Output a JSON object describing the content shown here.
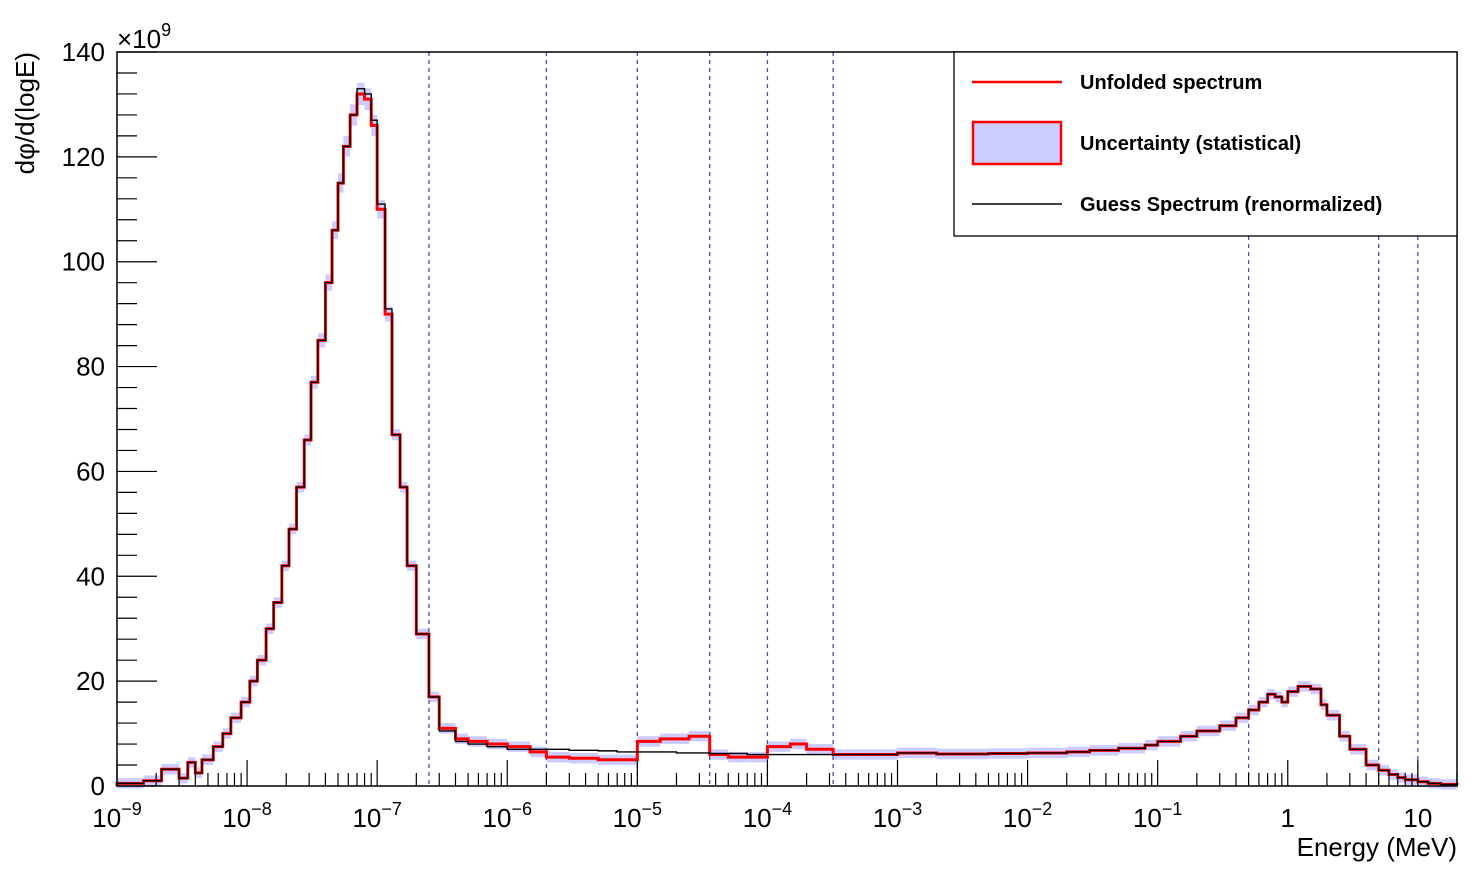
{
  "chart_data": {
    "type": "line",
    "title": "",
    "xlabel": "Energy (MeV)",
    "ylabel": "dφ/d(logE)",
    "y_multiplier_label": "×10",
    "y_multiplier_exponent": "9",
    "xscale": "log",
    "xlim": [
      1e-09,
      20
    ],
    "ylim": [
      0,
      140
    ],
    "grid": false,
    "legend_position": "top-right",
    "colors": {
      "unfolded": "#ff0000",
      "uncertainty_fill": "#ccccff",
      "guess": "#000000",
      "reference_lines": "#4b4bb4"
    },
    "x_ticks": [
      {
        "value": 1e-09,
        "base": "10",
        "exp": "−9"
      },
      {
        "value": 1e-08,
        "base": "10",
        "exp": "−8"
      },
      {
        "value": 1e-07,
        "base": "10",
        "exp": "−7"
      },
      {
        "value": 1e-06,
        "base": "10",
        "exp": "−6"
      },
      {
        "value": 1e-05,
        "base": "10",
        "exp": "−5"
      },
      {
        "value": 0.0001,
        "base": "10",
        "exp": "−4"
      },
      {
        "value": 0.001,
        "base": "10",
        "exp": "−3"
      },
      {
        "value": 0.01,
        "base": "10",
        "exp": "−2"
      },
      {
        "value": 0.1,
        "base": "10",
        "exp": "−1"
      },
      {
        "value": 1,
        "base": "1",
        "exp": ""
      },
      {
        "value": 10,
        "base": "10",
        "exp": ""
      }
    ],
    "y_ticks": [
      0,
      20,
      40,
      60,
      80,
      100,
      120,
      140
    ],
    "reference_lines_x": [
      2.5e-07,
      2e-06,
      1e-05,
      3.6e-05,
      0.0001,
      0.00032,
      0.5,
      5,
      10
    ],
    "legend": [
      {
        "label": "Unfolded spectrum",
        "style": "line-red"
      },
      {
        "label": "Uncertainty (statistical)",
        "style": "box-band"
      },
      {
        "label": "Guess Spectrum (renormalized)",
        "style": "line-black"
      }
    ],
    "series": [
      {
        "name": "Unfolded spectrum",
        "x": [
          1e-09,
          1.6e-09,
          2.2e-09,
          3e-09,
          3.5e-09,
          4e-09,
          4.5e-09,
          5.5e-09,
          6.5e-09,
          7.5e-09,
          9e-09,
          1.05e-08,
          1.2e-08,
          1.4e-08,
          1.6e-08,
          1.85e-08,
          2.1e-08,
          2.4e-08,
          2.75e-08,
          3.1e-08,
          3.5e-08,
          4e-08,
          4.5e-08,
          5e-08,
          5.5e-08,
          6.2e-08,
          7e-08,
          8e-08,
          9e-08,
          1e-07,
          1.15e-07,
          1.3e-07,
          1.5e-07,
          1.7e-07,
          2e-07,
          2.5e-07,
          3e-07,
          4e-07,
          5e-07,
          7e-07,
          1e-06,
          1.5e-06,
          2e-06,
          3e-06,
          5e-06,
          7e-06,
          1e-05,
          1.5e-05,
          2e-05,
          2.5e-05,
          3.6e-05,
          5e-05,
          7e-05,
          0.0001,
          0.00015,
          0.0002,
          0.00032,
          0.0005,
          0.001,
          0.002,
          0.005,
          0.01,
          0.02,
          0.03,
          0.05,
          0.08,
          0.1,
          0.15,
          0.2,
          0.3,
          0.4,
          0.5,
          0.6,
          0.7,
          0.8,
          0.9,
          1.0,
          1.2,
          1.5,
          1.8,
          2.0,
          2.5,
          3.0,
          4.0,
          5.0,
          6.0,
          7.0,
          8.0,
          10.0,
          12.0,
          15.0,
          20.0
        ],
        "y": [
          0.5,
          1,
          3.2,
          1.5,
          4.5,
          2.5,
          5,
          7.5,
          10,
          13,
          16,
          20,
          24,
          30,
          35,
          42,
          49,
          57,
          66,
          77,
          85,
          96,
          106,
          115,
          122,
          128,
          132,
          131,
          126,
          110,
          90,
          67,
          57,
          42,
          29,
          17,
          11,
          9,
          8.5,
          8,
          7.5,
          6.5,
          5.5,
          5.3,
          5,
          5,
          8.5,
          9,
          9,
          9.5,
          6,
          5.5,
          5.5,
          7.5,
          8,
          7,
          6,
          6,
          6.3,
          6.1,
          6.2,
          6.3,
          6.5,
          6.8,
          7.2,
          7.8,
          8.5,
          9.5,
          10.5,
          11.5,
          13,
          14.5,
          16,
          17.5,
          17,
          16,
          18,
          19,
          18.5,
          15.5,
          13.5,
          9.5,
          7,
          4,
          3,
          2.2,
          1.6,
          1.2,
          0.8,
          0.5,
          0.3,
          0.2
        ]
      },
      {
        "name": "Guess Spectrum (renormalized)",
        "x": [
          1e-09,
          1.6e-09,
          2.2e-09,
          3e-09,
          3.5e-09,
          4e-09,
          4.5e-09,
          5.5e-09,
          6.5e-09,
          7.5e-09,
          9e-09,
          1.05e-08,
          1.2e-08,
          1.4e-08,
          1.6e-08,
          1.85e-08,
          2.1e-08,
          2.4e-08,
          2.75e-08,
          3.1e-08,
          3.5e-08,
          4e-08,
          4.5e-08,
          5e-08,
          5.5e-08,
          6.2e-08,
          7e-08,
          8e-08,
          9e-08,
          1e-07,
          1.15e-07,
          1.3e-07,
          1.5e-07,
          1.7e-07,
          2e-07,
          2.5e-07,
          3e-07,
          4e-07,
          5e-07,
          7e-07,
          1e-06,
          1.5e-06,
          2e-06,
          3e-06,
          5e-06,
          7e-06,
          1e-05,
          1.5e-05,
          2e-05,
          2.5e-05,
          3.6e-05,
          5e-05,
          7e-05,
          0.0001,
          0.00015,
          0.0002,
          0.00032,
          0.0005,
          0.001,
          0.002,
          0.005,
          0.01,
          0.02,
          0.03,
          0.05,
          0.08,
          0.1,
          0.15,
          0.2,
          0.3,
          0.4,
          0.5,
          0.6,
          0.7,
          0.8,
          0.9,
          1.0,
          1.2,
          1.5,
          1.8,
          2.0,
          2.5,
          3.0,
          4.0,
          5.0,
          6.0,
          7.0,
          8.0,
          10.0,
          12.0,
          15.0,
          20.0
        ],
        "y": [
          0.5,
          1,
          3.2,
          1.5,
          4.5,
          2.5,
          5,
          7.5,
          10,
          13,
          16,
          20,
          24,
          30,
          35,
          42,
          49,
          57,
          66,
          77,
          85,
          96,
          106,
          115,
          122,
          128,
          133,
          132,
          127,
          111,
          91,
          67,
          57,
          42,
          29,
          17,
          10.5,
          8.5,
          8,
          7.5,
          7,
          7,
          7,
          6.8,
          6.7,
          6.5,
          6.5,
          6.5,
          6.3,
          6.3,
          6.2,
          6.2,
          6,
          6,
          6,
          6,
          6,
          6,
          6.3,
          6.1,
          6.2,
          6.3,
          6.5,
          6.8,
          7.2,
          7.8,
          8.5,
          9.5,
          10.5,
          11.5,
          13,
          14.5,
          16,
          17.5,
          17,
          16,
          18,
          19,
          18.5,
          15.5,
          13.5,
          9.5,
          7,
          4,
          3,
          2.2,
          1.6,
          1.2,
          0.8,
          0.5,
          0.3,
          0.2
        ]
      }
    ],
    "uncertainty_band": {
      "name": "Uncertainty (statistical)",
      "relative": 0.08,
      "absolute_min": 1.0
    }
  }
}
